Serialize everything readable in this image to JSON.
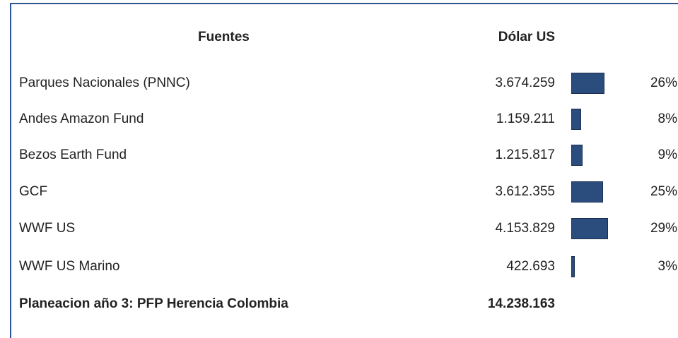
{
  "table": {
    "header": [
      "Fuentes",
      "Dólar US"
    ],
    "rows": [
      {
        "name": "Parques Nacionales (PNNC)",
        "amount": "3.674.259",
        "pct": 26,
        "pct_label": "26%"
      },
      {
        "name": "Andes Amazon Fund",
        "amount": "1.159.211",
        "pct": 8,
        "pct_label": "8%"
      },
      {
        "name": "Bezos Earth Fund",
        "amount": "1.215.817",
        "pct": 9,
        "pct_label": "9%"
      },
      {
        "name": "GCF",
        "amount": "3.612.355",
        "pct": 25,
        "pct_label": "25%"
      },
      {
        "name": "WWF US",
        "amount": "4.153.829",
        "pct": 29,
        "pct_label": "29%"
      },
      {
        "name": "WWF US Marino",
        "amount": "422.693",
        "pct": 3,
        "pct_label": "3%"
      }
    ],
    "total": {
      "name": "Planeacion año 3: PFP Herencia Colombia",
      "amount": "14.238.163"
    }
  }
}
